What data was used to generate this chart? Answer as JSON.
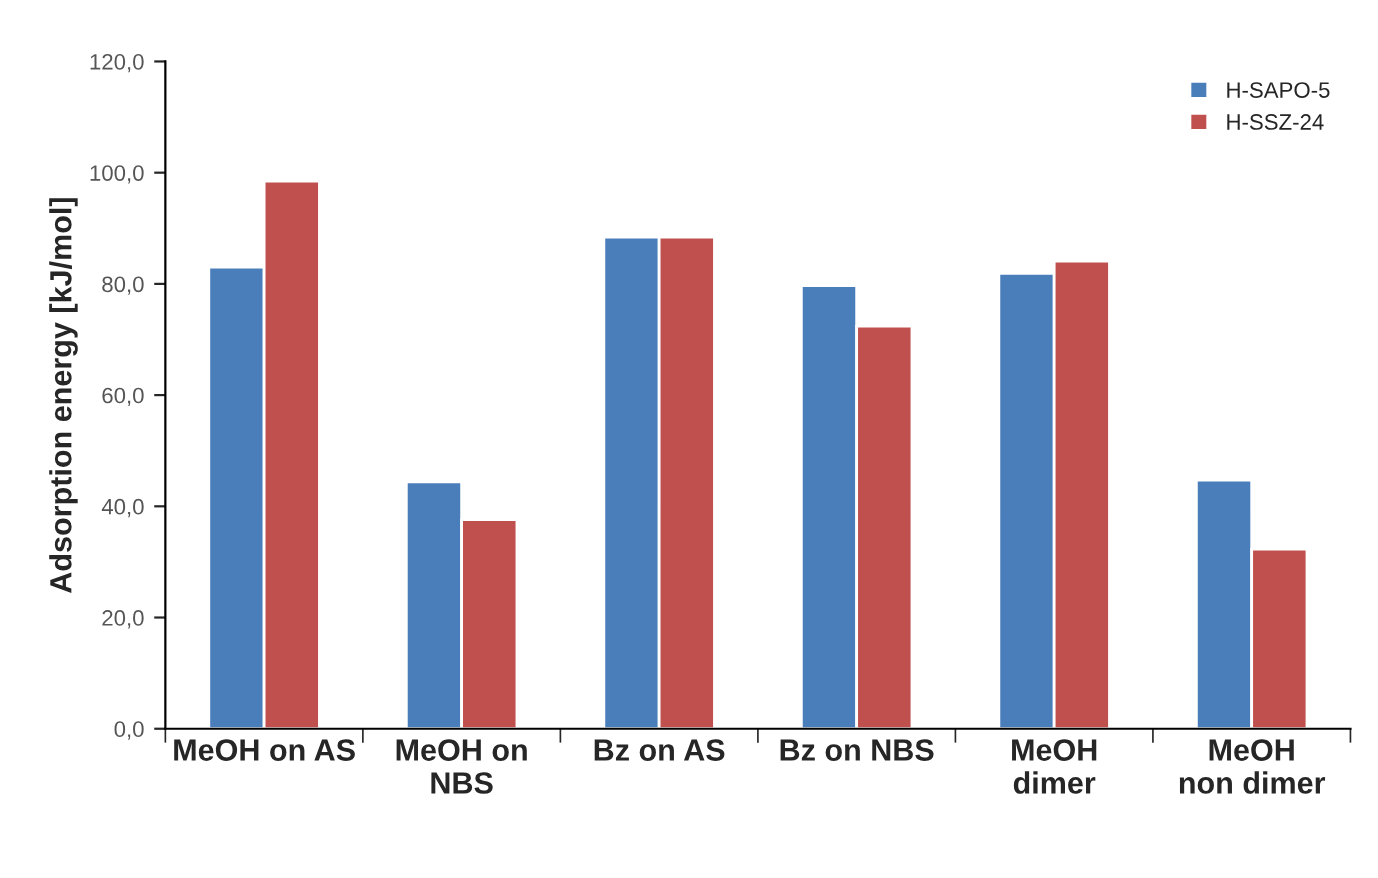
{
  "chart_data": {
    "type": "bar",
    "ylabel": "Adsorption energy [kJ/mol]",
    "categories": [
      "MeOH on AS",
      "MeOH on\nNBS",
      "Bz on AS",
      "Bz on NBS",
      "MeOH\ndimer",
      "MeOH\nnon dimer"
    ],
    "series": [
      {
        "name": "H-SAPO-5",
        "color": "#4a7ebb",
        "values": [
          83.0,
          44.4,
          88.4,
          79.7,
          81.9,
          44.7
        ]
      },
      {
        "name": "H-SSZ-24",
        "color": "#c0504d",
        "values": [
          98.5,
          37.6,
          88.4,
          72.4,
          84.1,
          32.3
        ]
      }
    ],
    "ylim": [
      0,
      120
    ],
    "yticks": [
      {
        "value": 0,
        "label": "0,0"
      },
      {
        "value": 20,
        "label": "20,0"
      },
      {
        "value": 40,
        "label": "40,0"
      },
      {
        "value": 60,
        "label": "60,0"
      },
      {
        "value": 80,
        "label": "80,0"
      },
      {
        "value": 100,
        "label": "100,0"
      },
      {
        "value": 120,
        "label": "120,0"
      }
    ],
    "grid": false,
    "legend": "top right"
  }
}
